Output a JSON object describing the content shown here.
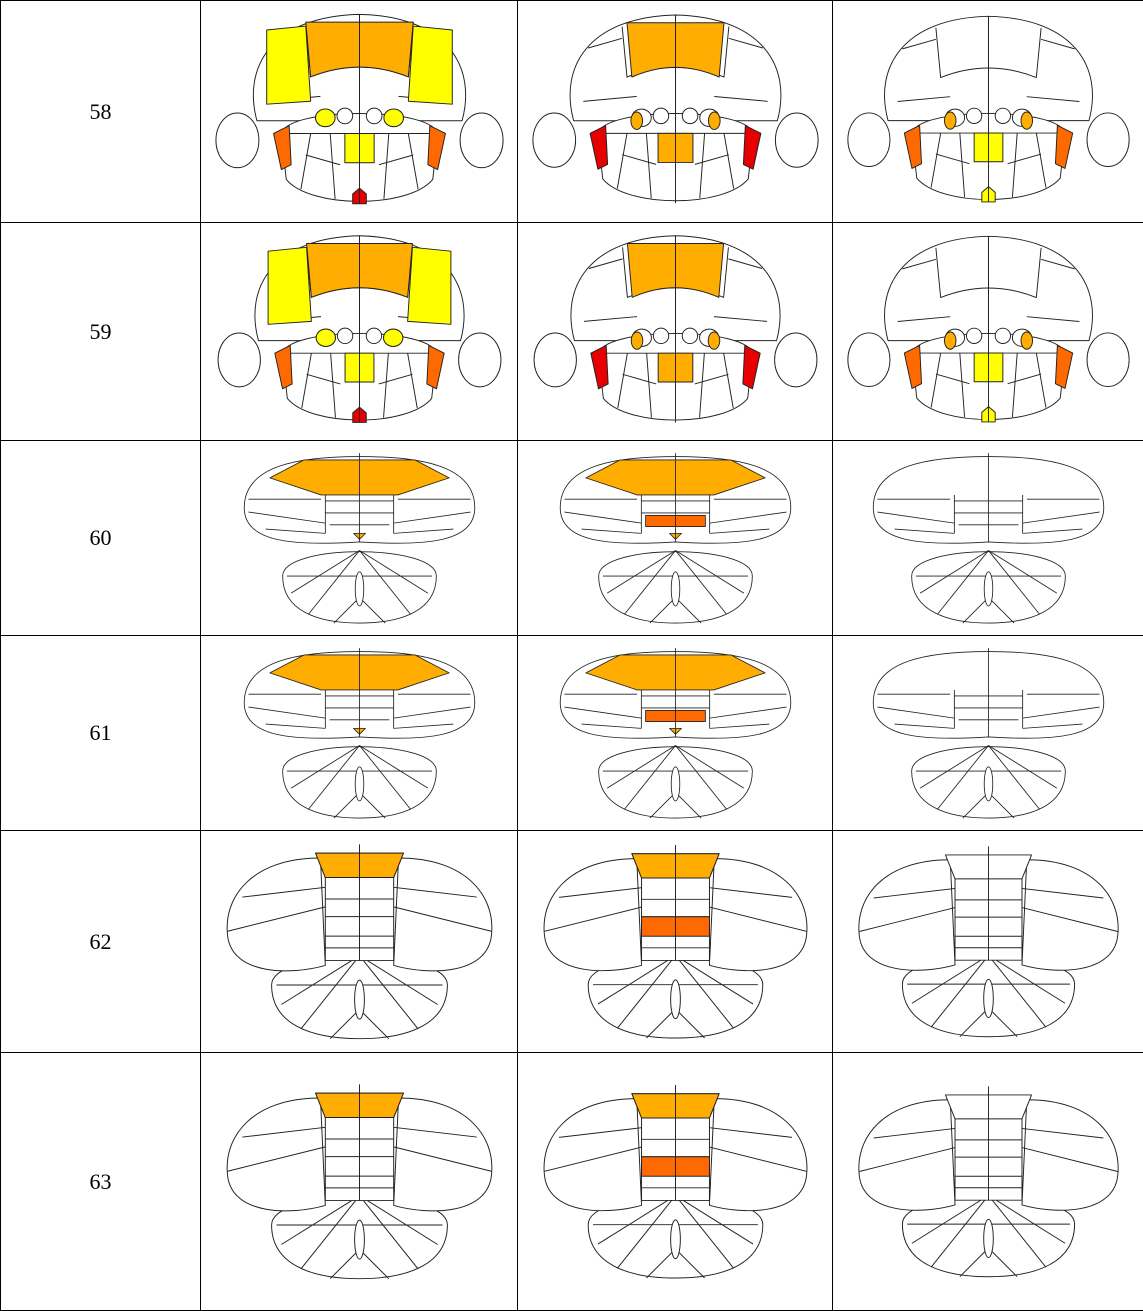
{
  "table": {
    "rows": [
      [
        "58"
      ],
      [
        "59"
      ],
      [
        "60"
      ],
      [
        "61"
      ],
      [
        "62"
      ],
      [
        "63"
      ]
    ]
  }
}
